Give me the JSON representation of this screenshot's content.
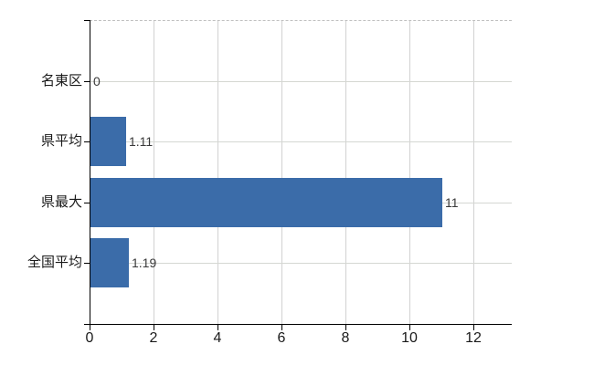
{
  "chart_data": {
    "type": "bar",
    "orientation": "horizontal",
    "title": "",
    "xlabel": "",
    "ylabel": "",
    "categories": [
      "名東区",
      "県平均",
      "県最大",
      "全国平均"
    ],
    "values": [
      0,
      1.11,
      11,
      1.19
    ],
    "value_labels": [
      "0",
      "1.11",
      "11",
      "1.19"
    ],
    "x_ticks": [
      0,
      2,
      4,
      6,
      8,
      10,
      12
    ],
    "x_tick_labels": [
      "0",
      "2",
      "4",
      "6",
      "8",
      "10",
      "12"
    ],
    "xlim": [
      0,
      13.2
    ],
    "grid": true,
    "legend": false,
    "colors": {
      "bar": "#3b6ca9",
      "grid_vertical": "#d2d2d2",
      "grid_horizontal": "#d5d7d2",
      "plot_top_border": "#c0c0c0",
      "axis": "#000000",
      "tick_label_text": "#1a1a1a",
      "value_label_text": "#3a3a3a",
      "background": "#ffffff"
    }
  }
}
